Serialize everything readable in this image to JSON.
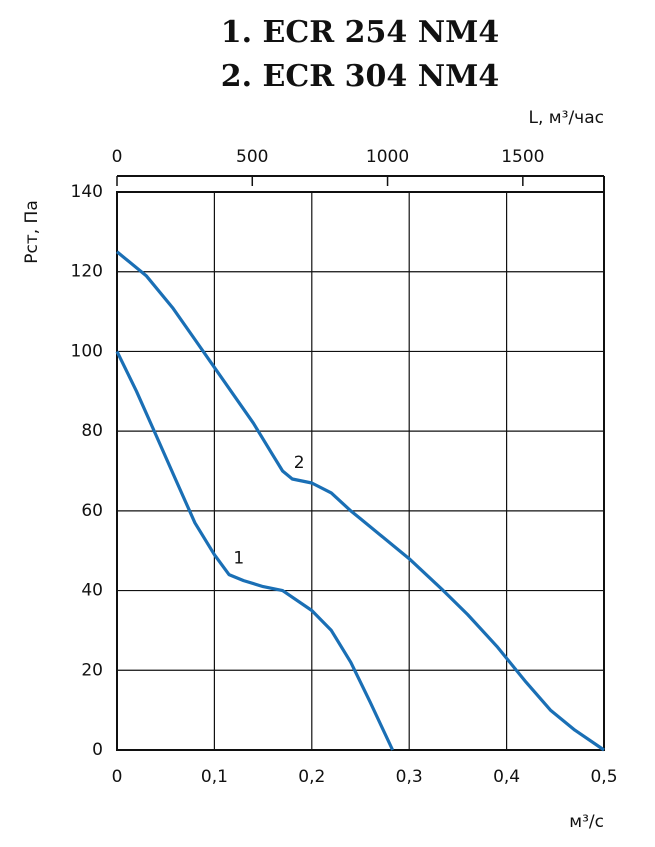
{
  "chart_data": {
    "type": "line",
    "title": [
      "1. ECR 254 NM4",
      "2. ECR 304 NM4"
    ],
    "xlabel": "м³/с",
    "ylabel": "Pст, Па",
    "x2label": "L, м³/час",
    "xlim": [
      0,
      0.5
    ],
    "xticks": [
      0,
      {
        "value": 0.1,
        "label": "0,1"
      },
      {
        "value": 0.2,
        "label": "0,2"
      },
      {
        "value": 0.3,
        "label": "0,3"
      },
      {
        "value": 0.4,
        "label": "0,4"
      },
      {
        "value": 0.5,
        "label": "0,5"
      }
    ],
    "x2lim": [
      0,
      1800
    ],
    "x2ticks": [
      0,
      500,
      1000,
      1500
    ],
    "ylim": [
      0,
      140
    ],
    "yticks": [
      0,
      20,
      40,
      60,
      80,
      100,
      120,
      140
    ],
    "grid": true,
    "series": [
      {
        "name": "1",
        "color": "#1a6fb5",
        "x": [
          0,
          0.02,
          0.04,
          0.06,
          0.08,
          0.1,
          0.115,
          0.13,
          0.15,
          0.17,
          0.2,
          0.22,
          0.24,
          0.26,
          0.283
        ],
        "values": [
          100,
          90,
          79,
          68,
          57,
          49,
          44,
          42.5,
          41,
          40,
          35,
          30,
          22,
          12,
          0
        ]
      },
      {
        "name": "2",
        "color": "#1a6fb5",
        "x": [
          0,
          0.03,
          0.057,
          0.08,
          0.1,
          0.12,
          0.14,
          0.16,
          0.17,
          0.18,
          0.2,
          0.22,
          0.24,
          0.25,
          0.3,
          0.335,
          0.36,
          0.39,
          0.42,
          0.445,
          0.47,
          0.5
        ],
        "values": [
          125,
          119,
          111,
          103,
          96,
          89,
          82,
          74,
          70,
          68,
          67,
          64.5,
          60,
          58,
          48,
          40,
          34,
          26,
          17,
          10,
          5,
          0
        ]
      }
    ]
  }
}
